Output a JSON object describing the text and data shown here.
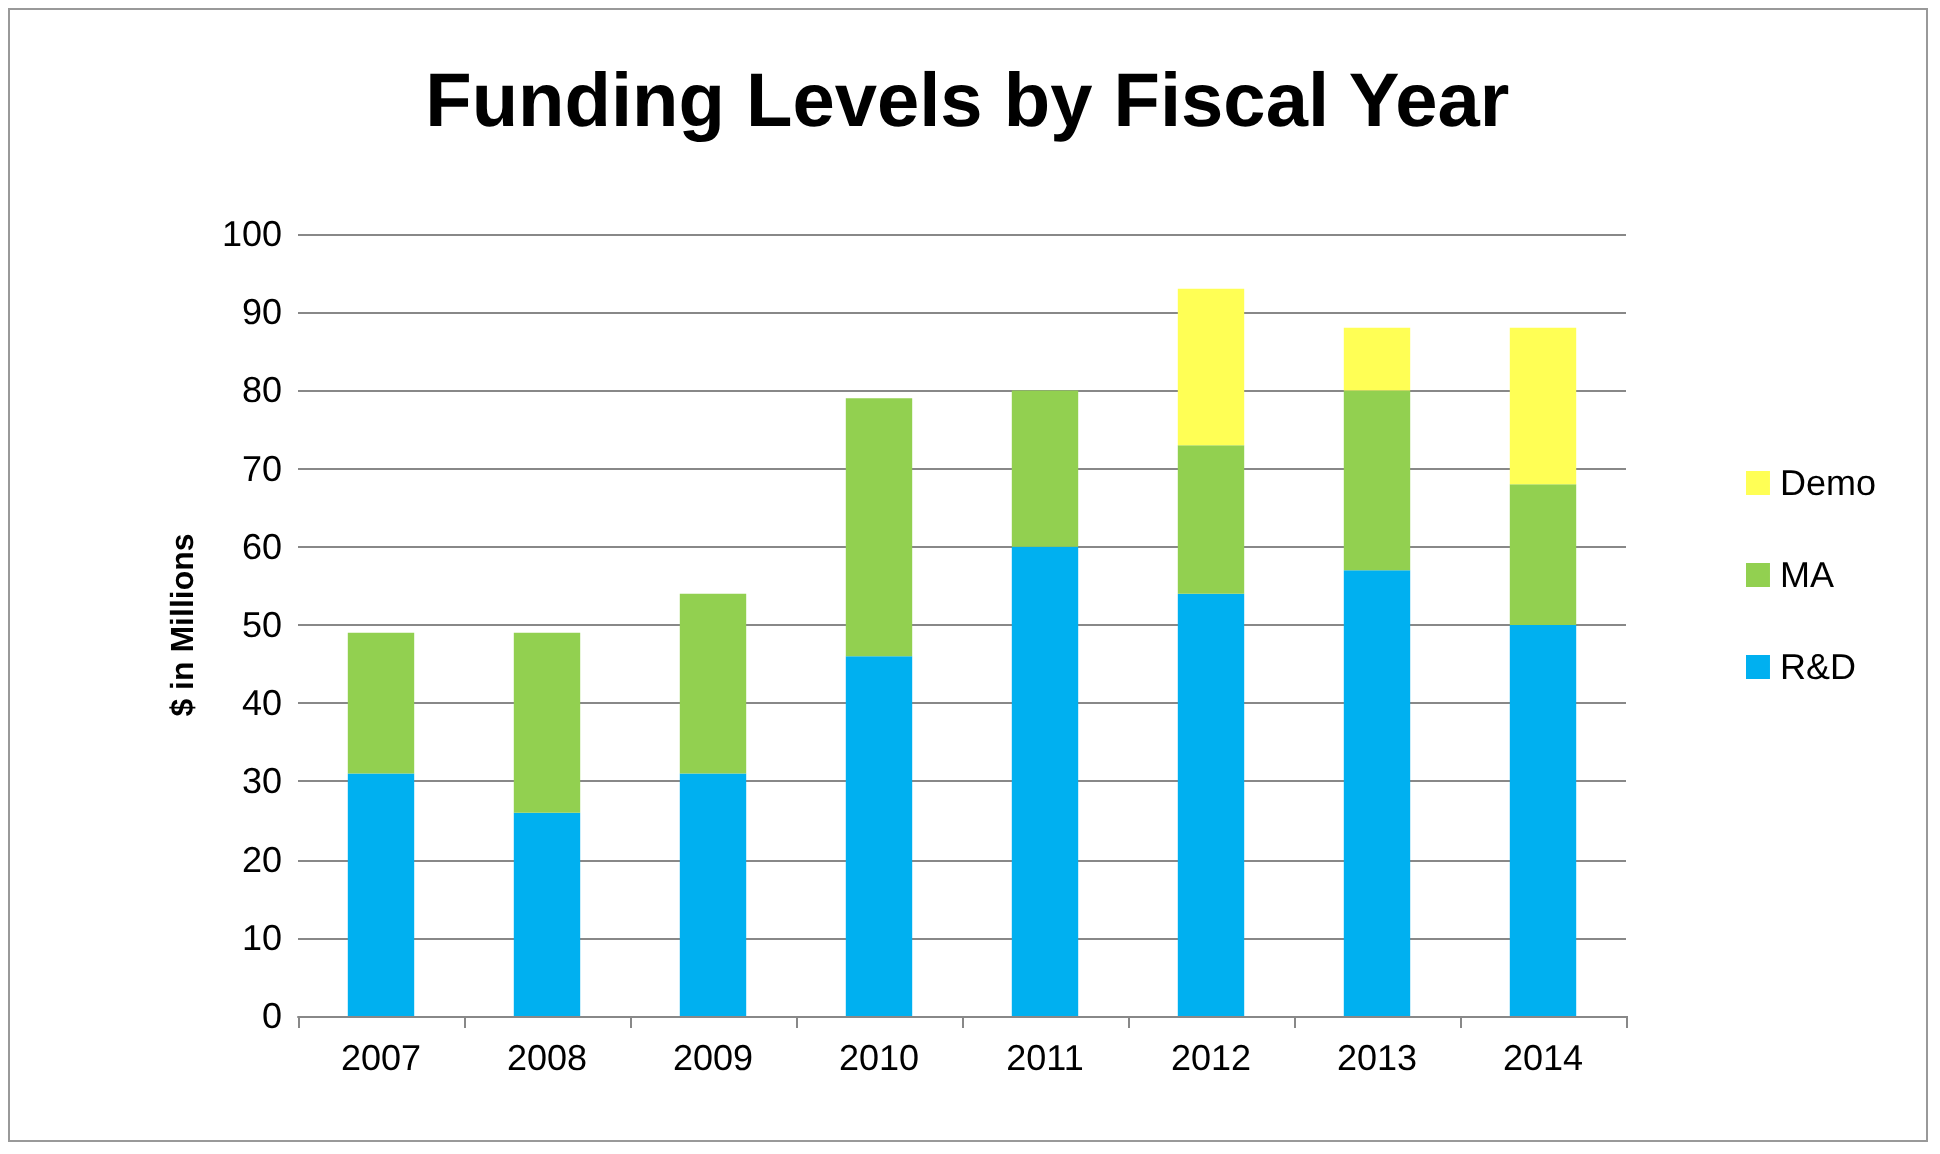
{
  "chart_data": {
    "type": "bar",
    "title": "Funding Levels by Fiscal Year",
    "ylabel": "$ in Millions",
    "categories": [
      "2007",
      "2008",
      "2009",
      "2010",
      "2011",
      "2012",
      "2013",
      "2014"
    ],
    "series": [
      {
        "name": "R&D",
        "color": "#00b0f0",
        "values": [
          31,
          26,
          31,
          46,
          60,
          54,
          57,
          50
        ]
      },
      {
        "name": "MA",
        "color": "#92d050",
        "values": [
          18,
          23,
          23,
          33,
          20,
          19,
          23,
          18
        ]
      },
      {
        "name": "Demo",
        "color": "#ffff55",
        "values": [
          null,
          null,
          null,
          null,
          null,
          20,
          8,
          20
        ]
      }
    ],
    "stacked": true,
    "ylim": [
      0,
      100
    ],
    "yticks": [
      0,
      10,
      20,
      30,
      40,
      50,
      60,
      70,
      80,
      90,
      100
    ],
    "grid": "y",
    "legend": "right"
  }
}
